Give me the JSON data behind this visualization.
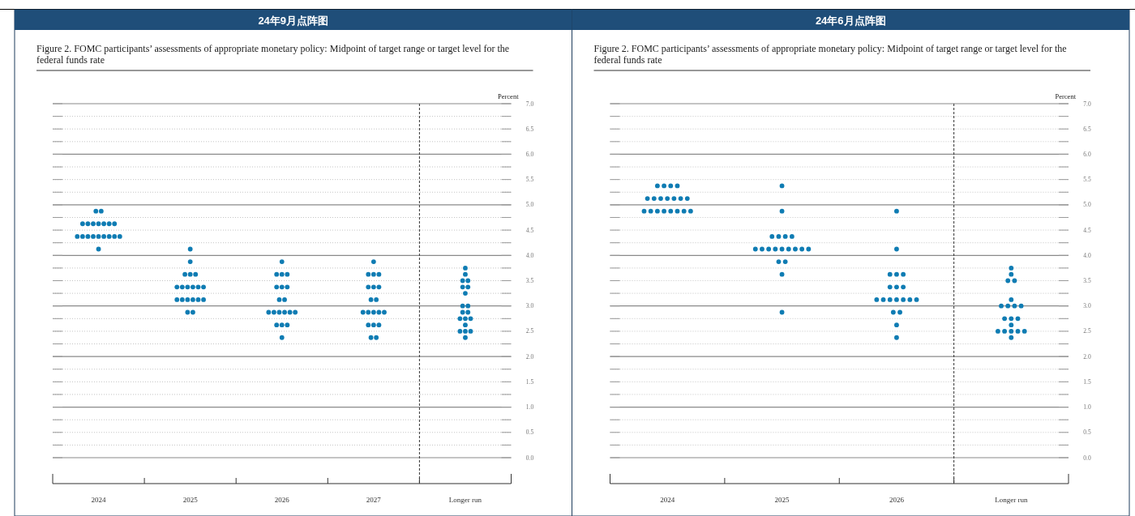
{
  "chart_data": [
    {
      "type": "scatter",
      "title": "24年9月点阵图",
      "subtitle": "Figure 2.  FOMC participants’ assessments of appropriate monetary policy:  Midpoint of target range or target level for the federal funds rate",
      "ylabel": "Percent",
      "categories": [
        "2024",
        "2025",
        "2026",
        "2027",
        "Longer run"
      ],
      "ylim": [
        0,
        7
      ],
      "marker": "circle",
      "grid": "y",
      "yticks": [
        {
          "value": 0,
          "label": "0.0"
        },
        {
          "value": 0.25,
          "label": null
        },
        {
          "value": 0.5,
          "label": "0.5"
        },
        {
          "value": 0.75,
          "label": null
        },
        {
          "value": 1,
          "label": "1.0"
        },
        {
          "value": 1.25,
          "label": null
        },
        {
          "value": 1.5,
          "label": "1.5"
        },
        {
          "value": 1.75,
          "label": null
        },
        {
          "value": 2,
          "label": "2.0"
        },
        {
          "value": 2.25,
          "label": null
        },
        {
          "value": 2.5,
          "label": "2.5"
        },
        {
          "value": 2.75,
          "label": null
        },
        {
          "value": 3,
          "label": "3.0"
        },
        {
          "value": 3.25,
          "label": null
        },
        {
          "value": 3.5,
          "label": "3.5"
        },
        {
          "value": 3.75,
          "label": null
        },
        {
          "value": 4,
          "label": "4.0"
        },
        {
          "value": 4.25,
          "label": null
        },
        {
          "value": 4.5,
          "label": "4.5"
        },
        {
          "value": 4.75,
          "label": null
        },
        {
          "value": 5,
          "label": "5.0"
        },
        {
          "value": 5.25,
          "label": null
        },
        {
          "value": 5.5,
          "label": "5.5"
        },
        {
          "value": 5.75,
          "label": null
        },
        {
          "value": 6,
          "label": "6.0"
        },
        {
          "value": 6.25,
          "label": null
        },
        {
          "value": 6.5,
          "label": "6.5"
        },
        {
          "value": 6.75,
          "label": null
        },
        {
          "value": 7,
          "label": "7.0"
        }
      ],
      "series": [
        {
          "color": "#0f7cb3",
          "values": [
            4.875,
            4.125,
            3.875,
            3.875,
            3.75
          ]
        },
        {
          "color": "#0f7cb3",
          "values": [
            4.875,
            3.875,
            3.625,
            3.625,
            3.625
          ]
        },
        {
          "color": "#0f7cb3",
          "values": [
            4.625,
            3.625,
            3.625,
            3.625,
            3.5
          ]
        },
        {
          "color": "#0f7cb3",
          "values": [
            4.625,
            3.625,
            3.625,
            3.625,
            3.5
          ]
        },
        {
          "color": "#0f7cb3",
          "values": [
            4.625,
            3.625,
            3.375,
            3.375,
            3.375
          ]
        },
        {
          "color": "#0f7cb3",
          "values": [
            4.625,
            3.375,
            3.375,
            3.375,
            3.375
          ]
        },
        {
          "color": "#0f7cb3",
          "values": [
            4.625,
            3.375,
            3.375,
            3.375,
            3.25
          ]
        },
        {
          "color": "#0f7cb3",
          "values": [
            4.625,
            3.375,
            3.125,
            3.125,
            3.0
          ]
        },
        {
          "color": "#0f7cb3",
          "values": [
            4.625,
            3.375,
            3.125,
            3.125,
            3.0
          ]
        },
        {
          "color": "#0f7cb3",
          "values": [
            4.375,
            3.375,
            2.875,
            2.875,
            2.875
          ]
        },
        {
          "color": "#0f7cb3",
          "values": [
            4.375,
            3.375,
            2.875,
            2.875,
            2.875
          ]
        },
        {
          "color": "#0f7cb3",
          "values": [
            4.375,
            3.125,
            2.875,
            2.875,
            2.75
          ]
        },
        {
          "color": "#0f7cb3",
          "values": [
            4.375,
            3.125,
            2.875,
            2.875,
            2.75
          ]
        },
        {
          "color": "#0f7cb3",
          "values": [
            4.375,
            3.125,
            2.875,
            2.875,
            2.75
          ]
        },
        {
          "color": "#0f7cb3",
          "values": [
            4.375,
            3.125,
            2.875,
            2.625,
            2.625
          ]
        },
        {
          "color": "#0f7cb3",
          "values": [
            4.375,
            3.125,
            2.625,
            2.625,
            2.5
          ]
        },
        {
          "color": "#0f7cb3",
          "values": [
            4.375,
            3.125,
            2.625,
            2.625,
            2.5
          ]
        },
        {
          "color": "#0f7cb3",
          "values": [
            4.375,
            2.875,
            2.625,
            2.375,
            2.5
          ]
        },
        {
          "color": "#0f7cb3",
          "values": [
            4.125,
            2.875,
            2.375,
            2.375,
            2.375
          ]
        }
      ]
    },
    {
      "type": "scatter",
      "title": "24年6月点阵图",
      "subtitle": "Figure 2.  FOMC participants’ assessments of appropriate monetary policy:  Midpoint of target range or target level for the federal funds rate",
      "ylabel": "Percent",
      "categories": [
        "2024",
        "2025",
        "2026",
        "Longer run"
      ],
      "ylim": [
        0,
        7
      ],
      "marker": "circle",
      "grid": "y",
      "yticks": [
        {
          "value": 0,
          "label": "0.0"
        },
        {
          "value": 0.25,
          "label": null
        },
        {
          "value": 0.5,
          "label": "0.5"
        },
        {
          "value": 0.75,
          "label": null
        },
        {
          "value": 1,
          "label": "1.0"
        },
        {
          "value": 1.25,
          "label": null
        },
        {
          "value": 1.5,
          "label": "1.5"
        },
        {
          "value": 1.75,
          "label": null
        },
        {
          "value": 2,
          "label": "2.0"
        },
        {
          "value": 2.25,
          "label": null
        },
        {
          "value": 2.5,
          "label": "2.5"
        },
        {
          "value": 2.75,
          "label": null
        },
        {
          "value": 3,
          "label": "3.0"
        },
        {
          "value": 3.25,
          "label": null
        },
        {
          "value": 3.5,
          "label": "3.5"
        },
        {
          "value": 3.75,
          "label": null
        },
        {
          "value": 4,
          "label": "4.0"
        },
        {
          "value": 4.25,
          "label": null
        },
        {
          "value": 4.5,
          "label": "4.5"
        },
        {
          "value": 4.75,
          "label": null
        },
        {
          "value": 5,
          "label": "5.0"
        },
        {
          "value": 5.25,
          "label": null
        },
        {
          "value": 5.5,
          "label": "5.5"
        },
        {
          "value": 5.75,
          "label": null
        },
        {
          "value": 6,
          "label": "6.0"
        },
        {
          "value": 6.25,
          "label": null
        },
        {
          "value": 6.5,
          "label": "6.5"
        },
        {
          "value": 6.75,
          "label": null
        },
        {
          "value": 7,
          "label": "7.0"
        }
      ],
      "series": [
        {
          "color": "#0f7cb3",
          "values": [
            5.375,
            5.375,
            4.875,
            3.75
          ]
        },
        {
          "color": "#0f7cb3",
          "values": [
            5.375,
            4.875,
            4.125,
            3.625
          ]
        },
        {
          "color": "#0f7cb3",
          "values": [
            5.375,
            4.375,
            3.625,
            3.5
          ]
        },
        {
          "color": "#0f7cb3",
          "values": [
            5.375,
            4.375,
            3.625,
            3.5
          ]
        },
        {
          "color": "#0f7cb3",
          "values": [
            5.125,
            4.375,
            3.625,
            3.125
          ]
        },
        {
          "color": "#0f7cb3",
          "values": [
            5.125,
            4.375,
            3.375,
            3.0
          ]
        },
        {
          "color": "#0f7cb3",
          "values": [
            5.125,
            4.125,
            3.375,
            3.0
          ]
        },
        {
          "color": "#0f7cb3",
          "values": [
            5.125,
            4.125,
            3.375,
            3.0
          ]
        },
        {
          "color": "#0f7cb3",
          "values": [
            5.125,
            4.125,
            3.125,
            3.0
          ]
        },
        {
          "color": "#0f7cb3",
          "values": [
            5.125,
            4.125,
            3.125,
            2.75
          ]
        },
        {
          "color": "#0f7cb3",
          "values": [
            5.125,
            4.125,
            3.125,
            2.75
          ]
        },
        {
          "color": "#0f7cb3",
          "values": [
            4.875,
            4.125,
            3.125,
            2.75
          ]
        },
        {
          "color": "#0f7cb3",
          "values": [
            4.875,
            4.125,
            3.125,
            2.625
          ]
        },
        {
          "color": "#0f7cb3",
          "values": [
            4.875,
            4.125,
            3.125,
            2.5
          ]
        },
        {
          "color": "#0f7cb3",
          "values": [
            4.875,
            4.125,
            3.125,
            2.5
          ]
        },
        {
          "color": "#0f7cb3",
          "values": [
            4.875,
            3.875,
            2.875,
            2.5
          ]
        },
        {
          "color": "#0f7cb3",
          "values": [
            4.875,
            3.875,
            2.875,
            2.5
          ]
        },
        {
          "color": "#0f7cb3",
          "values": [
            4.875,
            3.625,
            2.625,
            2.5
          ]
        },
        {
          "color": "#0f7cb3",
          "values": [
            4.875,
            2.875,
            2.375,
            2.375
          ]
        }
      ]
    }
  ]
}
